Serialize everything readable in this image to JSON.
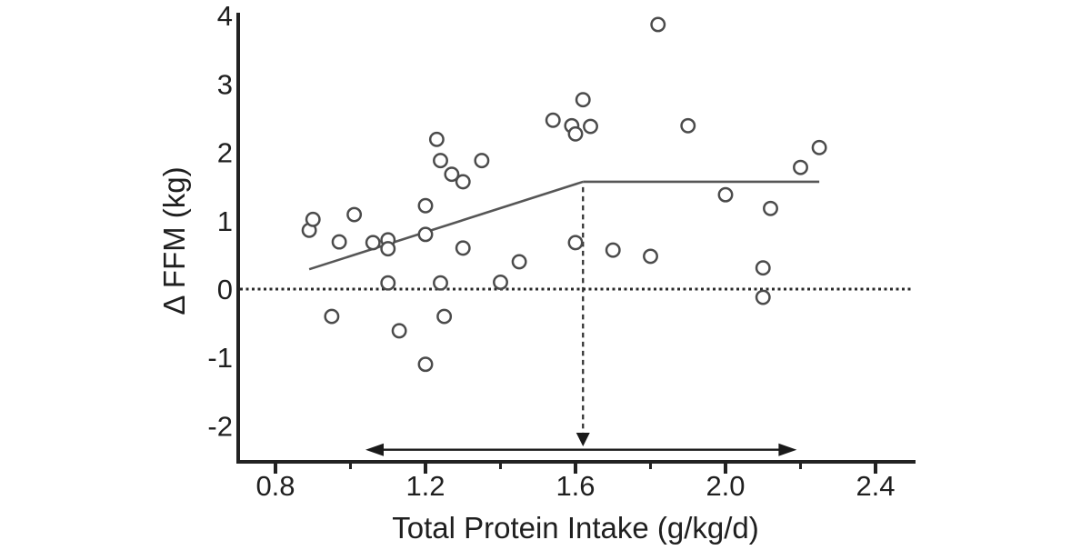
{
  "chart_data": {
    "type": "scatter",
    "title": "",
    "xlabel": "Total Protein Intake (g/kg/d)",
    "ylabel": "Δ FFM (kg)",
    "xlim": [
      0.7,
      2.5
    ],
    "ylim": [
      -2.5,
      4.1
    ],
    "grid": false,
    "legend": false,
    "marker": "open-circle",
    "x_major_ticks": {
      "values": [
        0.8,
        1.2,
        1.6,
        2.0,
        2.4
      ],
      "labels": [
        "0.8",
        "1.2",
        "1.6",
        "2.0",
        "2.4"
      ]
    },
    "x_minor_ticks": [
      1.0,
      1.4,
      1.8,
      2.2
    ],
    "y_ticks": {
      "values": [
        4,
        3,
        2,
        1,
        0,
        -1,
        -2
      ],
      "labels": [
        "4",
        "3",
        "2",
        "1",
        "0",
        "-1",
        "-2"
      ]
    },
    "zero_reference_line": {
      "y": 0,
      "style": "dotted"
    },
    "points": [
      [
        0.89,
        0.86
      ],
      [
        0.9,
        1.02
      ],
      [
        0.95,
        -0.4
      ],
      [
        0.97,
        0.69
      ],
      [
        1.01,
        1.09
      ],
      [
        1.06,
        0.68
      ],
      [
        1.1,
        0.72
      ],
      [
        1.1,
        0.59
      ],
      [
        1.1,
        0.09
      ],
      [
        1.13,
        -0.61
      ],
      [
        1.2,
        -1.1
      ],
      [
        1.2,
        1.22
      ],
      [
        1.2,
        0.8
      ],
      [
        1.23,
        2.19
      ],
      [
        1.24,
        1.88
      ],
      [
        1.24,
        0.09
      ],
      [
        1.25,
        -0.4
      ],
      [
        1.27,
        1.68
      ],
      [
        1.3,
        1.57
      ],
      [
        1.3,
        0.6
      ],
      [
        1.35,
        1.88
      ],
      [
        1.4,
        0.1
      ],
      [
        1.45,
        0.4
      ],
      [
        1.54,
        2.47
      ],
      [
        1.59,
        2.39
      ],
      [
        1.6,
        2.27
      ],
      [
        1.62,
        2.77
      ],
      [
        1.64,
        2.38
      ],
      [
        1.6,
        0.68
      ],
      [
        1.7,
        0.57
      ],
      [
        1.8,
        0.48
      ],
      [
        1.82,
        3.87
      ],
      [
        1.9,
        2.39
      ],
      [
        2.0,
        1.38
      ],
      [
        2.1,
        0.31
      ],
      [
        2.1,
        -0.12
      ],
      [
        2.12,
        1.18
      ],
      [
        2.2,
        1.78
      ],
      [
        2.25,
        2.07
      ]
    ],
    "segmented_regression": {
      "breakpoint_x": 1.62,
      "plateau_y": 1.57,
      "rising_segment": [
        [
          0.89,
          0.29
        ],
        [
          1.62,
          1.57
        ]
      ],
      "plateau_segment": [
        [
          1.62,
          1.57
        ],
        [
          2.25,
          1.57
        ]
      ]
    },
    "breakpoint_arrow": {
      "style": "dashed-down-arrow",
      "x": 1.62,
      "from_y": 1.57,
      "to_y": -2.3
    },
    "ci_double_arrow": {
      "x_from": 1.04,
      "x_to": 2.19,
      "y": -2.35
    }
  },
  "colors": {
    "axis": "#222222",
    "text": "#1f1f1f",
    "marker_stroke": "#4b4b4b",
    "marker_fill": "#ffffff",
    "trend_line": "#565656",
    "dotted_line": "#2a2a2a",
    "arrow": "#1a1a1a",
    "dashed_arrow": "#333333",
    "background": "#ffffff"
  }
}
